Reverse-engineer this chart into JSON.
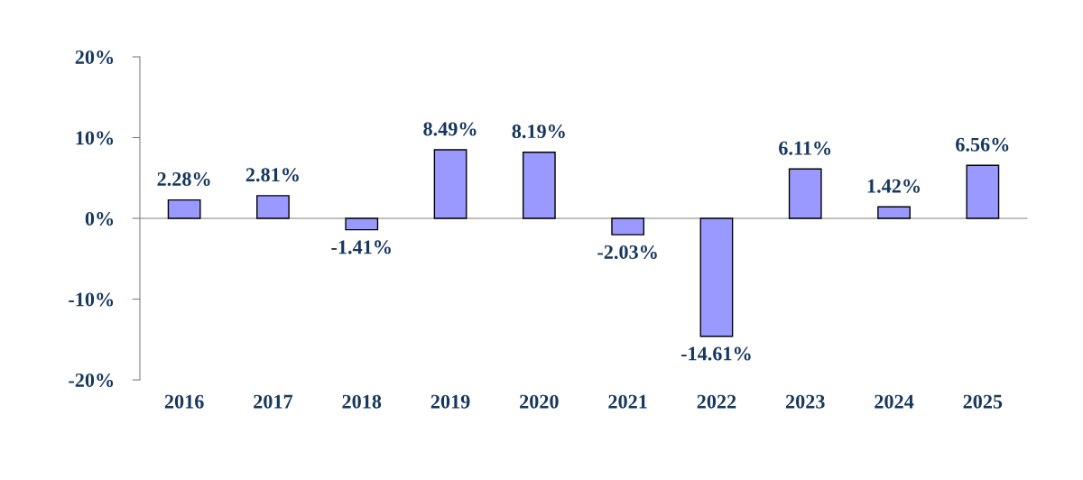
{
  "chart_data": {
    "type": "bar",
    "categories": [
      "2016",
      "2017",
      "2018",
      "2019",
      "2020",
      "2021",
      "2022",
      "2023",
      "2024",
      "2025"
    ],
    "values": [
      2.28,
      2.81,
      -1.41,
      8.49,
      8.19,
      -2.03,
      -14.61,
      6.11,
      1.42,
      6.56
    ],
    "value_labels": [
      "2.28%",
      "2.81%",
      "-1.41%",
      "8.49%",
      "8.19%",
      "-2.03%",
      "-14.61%",
      "6.11%",
      "1.42%",
      "6.56%"
    ],
    "color": "#9999ff",
    "ylim": [
      -20,
      20
    ],
    "yticks": [
      {
        "value": -20,
        "label": "-20%"
      },
      {
        "value": -10,
        "label": "-10%"
      },
      {
        "value": 0,
        "label": "0%"
      },
      {
        "value": 10,
        "label": "10%"
      },
      {
        "value": 20,
        "label": "20%"
      }
    ],
    "legend": false
  }
}
